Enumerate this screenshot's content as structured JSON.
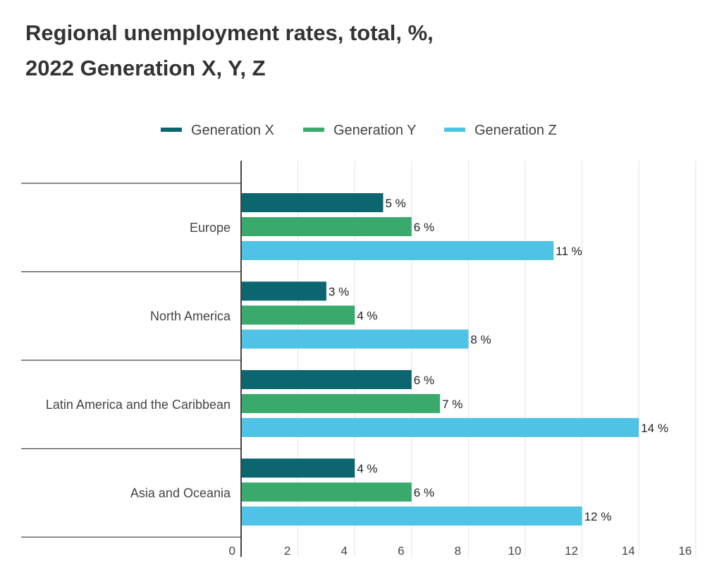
{
  "chart_data": {
    "type": "bar",
    "orientation": "horizontal",
    "title_lines": [
      "Regional unemployment rates, total, %,",
      "2022 Generation X, Y, Z"
    ],
    "categories": [
      "Europe",
      "North America",
      "Latin America and the Caribbean",
      "Asia and Oceania"
    ],
    "series": [
      {
        "name": "Generation X",
        "color": "#0b6670",
        "values": [
          5,
          3,
          6,
          4
        ]
      },
      {
        "name": "Generation Y",
        "color": "#3aa96c",
        "values": [
          6,
          4,
          7,
          6
        ]
      },
      {
        "name": "Generation Z",
        "color": "#4fc3e6",
        "values": [
          11,
          8,
          14,
          12
        ]
      }
    ],
    "value_suffix": " %",
    "xlim": [
      0,
      16
    ],
    "xticks": [
      0,
      2,
      4,
      6,
      8,
      10,
      12,
      14,
      16
    ],
    "grid": true,
    "legend": "top"
  }
}
